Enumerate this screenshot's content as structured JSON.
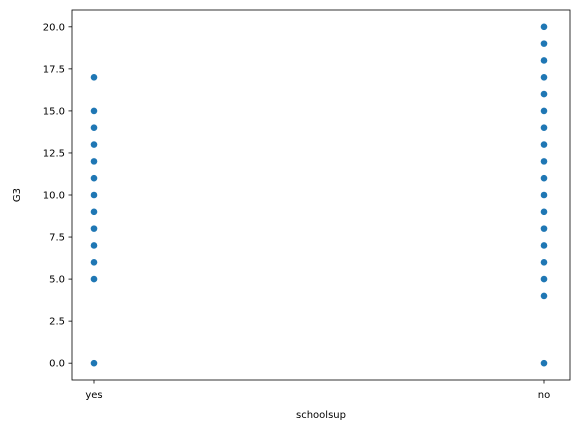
{
  "chart_data": {
    "type": "scatter",
    "title": "",
    "xlabel": "schoolsup",
    "ylabel": "G3",
    "categories": [
      "yes",
      "no"
    ],
    "ylim": [
      -1.0,
      21.0
    ],
    "yticks": [
      "0.0",
      "2.5",
      "5.0",
      "7.5",
      "10.0",
      "12.5",
      "15.0",
      "17.5",
      "20.0"
    ],
    "grid": false,
    "marker_color": "#1f77b4",
    "series": [
      {
        "category": "yes",
        "values": [
          0,
          5,
          6,
          7,
          8,
          9,
          10,
          11,
          12,
          13,
          14,
          15,
          17
        ]
      },
      {
        "category": "no",
        "values": [
          0,
          4,
          5,
          6,
          7,
          8,
          9,
          10,
          11,
          12,
          13,
          14,
          15,
          16,
          17,
          18,
          19,
          20
        ]
      }
    ]
  }
}
